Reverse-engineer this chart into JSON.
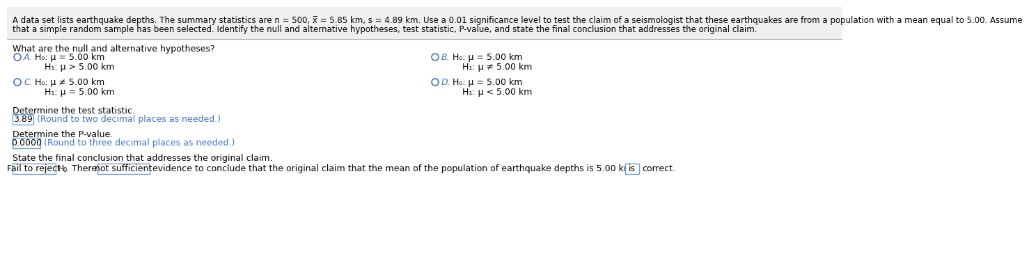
{
  "header_line1": "A data set lists earthquake depths. The summary statistics are n = 500, x̅ = 5.85 km, s = 4.89 km. Use a 0.01 significance level to test the claim of a seismologist that these earthquakes are from a population with a mean equal to 5.00. Assume",
  "header_line2": "that a simple random sample has been selected. Identify the null and alternative hypotheses, test statistic, P-value, and state the final conclusion that addresses the original claim.",
  "question1": "What are the null and alternative hypotheses?",
  "opt_A_label": "A.",
  "opt_A_h0": "H₀: μ = 5.00 km",
  "opt_A_h1": "H₁: μ > 5.00 km",
  "opt_B_label": "B.",
  "opt_B_h0": "H₀: μ = 5.00 km",
  "opt_B_h1": "H₁: μ ≠ 5.00 km",
  "opt_C_label": "C.",
  "opt_C_h0": "H₀: μ ≠ 5.00 km",
  "opt_C_h1": "H₁: μ = 5.00 km",
  "opt_D_label": "D.",
  "opt_D_h0": "H₀: μ = 5.00 km",
  "opt_D_h1": "H₁: μ < 5.00 km",
  "question2": "Determine the test statistic.",
  "test_stat_value": "3.89",
  "test_stat_note": "(Round to two decimal places as needed.)",
  "question3": "Determine the P-value.",
  "p_value": "0.0000",
  "p_value_note": "(Round to three decimal places as needed.)",
  "question4": "State the final conclusion that addresses the original claim.",
  "bg_color": "#ffffff",
  "text_color": "#000000",
  "blue_color": "#4472c4",
  "header_bg": "#f0f0f0",
  "box_border": "#6a9fd8",
  "radio_color": "#4472c4",
  "sep_line_color": "#aaaaaa",
  "font_size": 9.0,
  "header_font_size": 8.5,
  "label_color": "#4472c4"
}
